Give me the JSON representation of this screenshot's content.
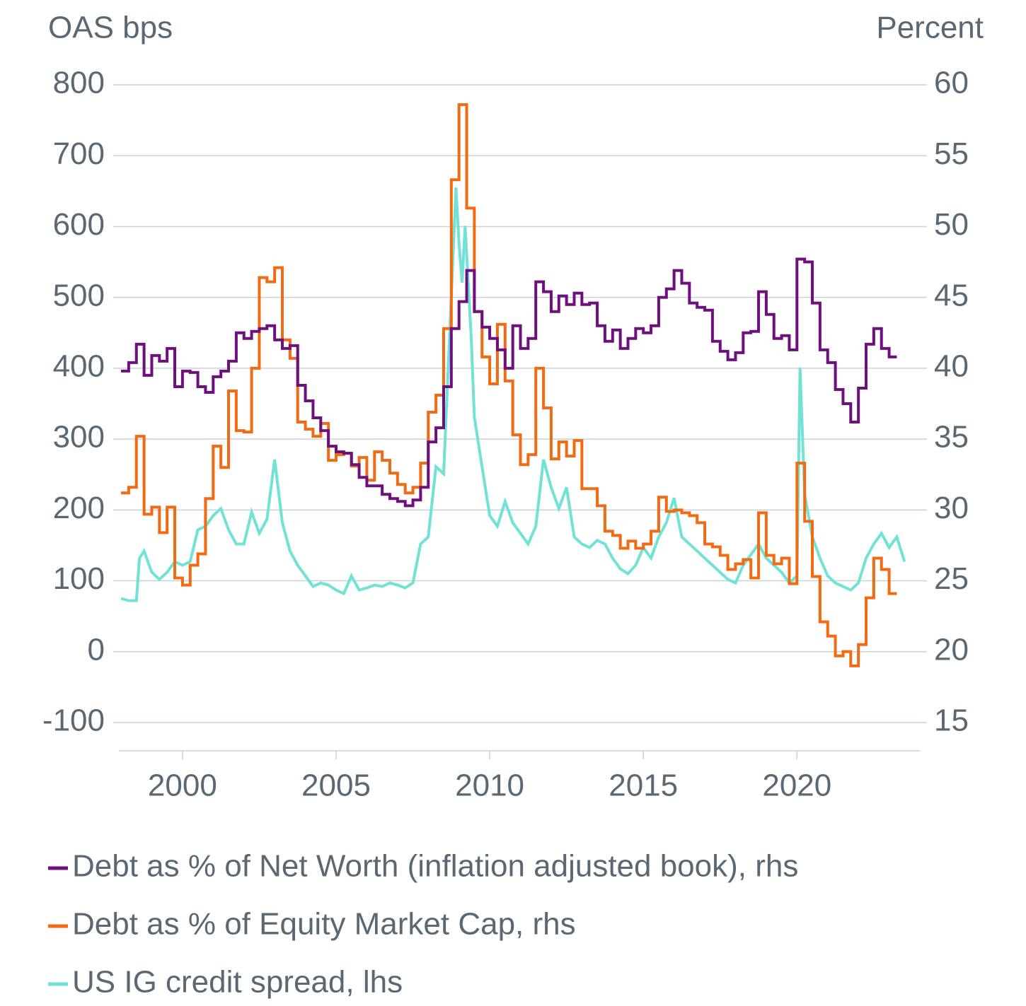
{
  "chart_data": {
    "type": "line",
    "y_label": "OAS bps",
    "y2_label": "Percent",
    "xlim": [
      1997.93,
      2024.0
    ],
    "xticks": [
      2000,
      2005,
      2010,
      2015,
      2020
    ],
    "ylim": [
      -100,
      800
    ],
    "yticks": [
      -100,
      0,
      100,
      200,
      300,
      400,
      500,
      600,
      700,
      800
    ],
    "y2lim": [
      15,
      60
    ],
    "y2ticks": [
      15,
      20,
      25,
      30,
      35,
      40,
      45,
      50,
      55,
      60
    ],
    "grid": true,
    "legend": "bottom",
    "series": [
      {
        "name": "Debt as % of Net Worth (inflation adjusted book), rhs",
        "color": "#6e0f7e",
        "axis": "y2",
        "step": true,
        "x": [
          1998,
          1998.25,
          1998.5,
          1998.75,
          1999,
          1999.25,
          1999.5,
          1999.75,
          2000,
          2000.25,
          2000.5,
          2000.75,
          2001,
          2001.25,
          2001.5,
          2001.75,
          2002,
          2002.25,
          2002.5,
          2002.75,
          2003,
          2003.25,
          2003.5,
          2003.75,
          2004,
          2004.25,
          2004.5,
          2004.75,
          2005,
          2005.25,
          2005.5,
          2005.75,
          2006,
          2006.25,
          2006.5,
          2006.75,
          2007,
          2007.25,
          2007.5,
          2007.75,
          2008,
          2008.25,
          2008.5,
          2008.75,
          2009,
          2009.25,
          2009.5,
          2009.75,
          2010,
          2010.25,
          2010.5,
          2010.75,
          2011,
          2011.25,
          2011.5,
          2011.75,
          2012,
          2012.25,
          2012.5,
          2012.75,
          2013,
          2013.25,
          2013.5,
          2013.75,
          2014,
          2014.25,
          2014.5,
          2014.75,
          2015,
          2015.25,
          2015.5,
          2015.75,
          2016,
          2016.25,
          2016.5,
          2016.75,
          2017,
          2017.25,
          2017.5,
          2017.75,
          2018,
          2018.25,
          2018.5,
          2018.75,
          2019,
          2019.25,
          2019.5,
          2019.75,
          2020,
          2020.25,
          2020.5,
          2020.75,
          2021,
          2021.25,
          2021.5,
          2021.75,
          2022,
          2022.25,
          2022.5,
          2022.75,
          2023,
          2023.25
        ],
        "values": [
          39.8,
          40.4,
          41.7,
          39.5,
          40.9,
          40.5,
          41.4,
          38.7,
          39.8,
          39.7,
          38.7,
          38.3,
          39.4,
          39.8,
          40.5,
          42.5,
          42.1,
          42.6,
          42.8,
          43.0,
          42.0,
          41.4,
          41.6,
          38.8,
          37.7,
          36.5,
          35.6,
          34.5,
          34.1,
          34.0,
          33.2,
          32.3,
          31.7,
          31.7,
          31.1,
          30.8,
          30.6,
          30.3,
          30.7,
          31.6,
          34.8,
          35.8,
          38.7,
          42.8,
          44.7,
          46.9,
          44.0,
          42.9,
          42.1,
          41.3,
          40.0,
          43.0,
          41.4,
          42.1,
          46.1,
          45.4,
          44.0,
          45.1,
          44.5,
          45.3,
          44.5,
          44.6,
          43.0,
          41.9,
          42.7,
          41.4,
          42.1,
          42.8,
          42.5,
          43.0,
          45.0,
          45.6,
          46.9,
          46.0,
          44.6,
          44.3,
          44.1,
          41.9,
          41.2,
          40.6,
          41.1,
          42.5,
          42.6,
          45.4,
          43.8,
          42.1,
          42.3,
          41.3,
          47.7,
          47.5,
          44.6,
          41.3,
          40.4,
          38.5,
          37.5,
          36.2,
          38.6,
          41.7,
          42.8,
          41.4,
          40.8,
          40.8
        ]
      },
      {
        "name": "Debt as % of Equity Market Cap, rhs",
        "color": "#f26b12",
        "axis": "y2",
        "step": true,
        "x": [
          1998,
          1998.25,
          1998.5,
          1998.75,
          1999,
          1999.25,
          1999.5,
          1999.75,
          2000,
          2000.25,
          2000.5,
          2000.75,
          2001,
          2001.25,
          2001.5,
          2001.75,
          2002,
          2002.25,
          2002.5,
          2002.75,
          2003,
          2003.25,
          2003.5,
          2003.75,
          2004,
          2004.25,
          2004.5,
          2004.75,
          2005,
          2005.25,
          2005.5,
          2005.75,
          2006,
          2006.25,
          2006.5,
          2006.75,
          2007,
          2007.25,
          2007.5,
          2007.75,
          2008,
          2008.25,
          2008.5,
          2008.75,
          2009,
          2009.25,
          2009.5,
          2009.75,
          2010,
          2010.25,
          2010.5,
          2010.75,
          2011,
          2011.25,
          2011.5,
          2011.75,
          2012,
          2012.25,
          2012.5,
          2012.75,
          2013,
          2013.25,
          2013.5,
          2013.75,
          2014,
          2014.25,
          2014.5,
          2014.75,
          2015,
          2015.25,
          2015.5,
          2015.75,
          2016,
          2016.25,
          2016.5,
          2016.75,
          2017,
          2017.25,
          2017.5,
          2017.75,
          2018,
          2018.25,
          2018.5,
          2018.75,
          2019,
          2019.25,
          2019.5,
          2019.75,
          2020,
          2020.25,
          2020.5,
          2020.75,
          2021,
          2021.25,
          2021.5,
          2021.75,
          2022,
          2022.25,
          2022.5,
          2022.75,
          2023,
          2023.25
        ],
        "values": [
          31.2,
          31.6,
          35.2,
          29.7,
          30.2,
          28.4,
          30.2,
          25.2,
          24.7,
          26.1,
          26.9,
          30.8,
          34.5,
          33.0,
          38.4,
          35.6,
          35.5,
          40.0,
          46.4,
          46.1,
          47.1,
          42.0,
          40.7,
          36.2,
          35.7,
          35.2,
          36.1,
          33.5,
          33.9,
          34.0,
          33.1,
          33.7,
          32.1,
          34.1,
          33.5,
          32.6,
          31.8,
          31.2,
          31.6,
          33.3,
          36.9,
          38.1,
          42.8,
          53.3,
          58.6,
          51.3,
          44.0,
          40.8,
          38.9,
          43.1,
          39.1,
          35.3,
          33.2,
          33.9,
          40.0,
          37.2,
          33.6,
          34.8,
          33.8,
          34.9,
          31.5,
          31.5,
          30.3,
          28.5,
          28.2,
          27.3,
          27.8,
          27.3,
          27.6,
          28.5,
          30.9,
          29.9,
          30.0,
          29.8,
          29.6,
          29.1,
          27.6,
          27.4,
          26.8,
          25.8,
          26.2,
          26.5,
          25.2,
          29.8,
          26.8,
          26.2,
          26.6,
          24.8,
          33.3,
          29.2,
          25.3,
          22.1,
          21.1,
          19.7,
          20.0,
          19.0,
          20.5,
          23.8,
          26.6,
          25.8,
          24.1,
          24.1
        ]
      },
      {
        "name": "US IG credit spread, lhs",
        "color": "#72e2d6",
        "axis": "y",
        "step": false,
        "x": [
          1998,
          1998.25,
          1998.5,
          1998.6,
          1998.75,
          1999,
          1999.25,
          1999.5,
          1999.75,
          2000,
          2000.25,
          2000.5,
          2000.75,
          2001,
          2001.25,
          2001.5,
          2001.75,
          2002,
          2002.25,
          2002.5,
          2002.75,
          2003,
          2003.25,
          2003.5,
          2003.75,
          2004,
          2004.25,
          2004.5,
          2004.75,
          2005,
          2005.25,
          2005.5,
          2005.75,
          2006,
          2006.25,
          2006.5,
          2006.75,
          2007,
          2007.25,
          2007.5,
          2007.75,
          2008,
          2008.25,
          2008.5,
          2008.75,
          2008.9,
          2009,
          2009.1,
          2009.2,
          2009.4,
          2009.5,
          2009.75,
          2010,
          2010.25,
          2010.5,
          2010.75,
          2011,
          2011.25,
          2011.5,
          2011.75,
          2012,
          2012.25,
          2012.5,
          2012.75,
          2013,
          2013.25,
          2013.5,
          2013.75,
          2014,
          2014.25,
          2014.5,
          2014.75,
          2015,
          2015.25,
          2015.5,
          2015.75,
          2016,
          2016.25,
          2016.5,
          2016.75,
          2017,
          2017.25,
          2017.5,
          2017.75,
          2018,
          2018.25,
          2018.5,
          2018.75,
          2019,
          2019.25,
          2019.5,
          2019.75,
          2020,
          2020.1,
          2020.25,
          2020.5,
          2020.75,
          2021,
          2021.25,
          2021.5,
          2021.75,
          2022,
          2022.25,
          2022.5,
          2022.75,
          2023,
          2023.25,
          2023.5
        ],
        "values": [
          75,
          72,
          72,
          132,
          142,
          112,
          102,
          112,
          127,
          122,
          127,
          172,
          177,
          192,
          202,
          172,
          152,
          152,
          197,
          167,
          187,
          271,
          182,
          142,
          122,
          107,
          92,
          97,
          94,
          87,
          82,
          107,
          87,
          90,
          94,
          92,
          97,
          94,
          90,
          97,
          152,
          162,
          261,
          251,
          501,
          655,
          577,
          521,
          601,
          441,
          331,
          261,
          192,
          177,
          212,
          182,
          167,
          152,
          177,
          271,
          232,
          202,
          232,
          162,
          152,
          147,
          157,
          152,
          132,
          117,
          110,
          122,
          147,
          132,
          162,
          182,
          217,
          162,
          152,
          142,
          132,
          122,
          112,
          102,
          97,
          122,
          137,
          152,
          132,
          122,
          112,
          97,
          107,
          401,
          222,
          162,
          132,
          107,
          97,
          92,
          87,
          97,
          132,
          152,
          167,
          147,
          162,
          127
        ]
      }
    ]
  }
}
